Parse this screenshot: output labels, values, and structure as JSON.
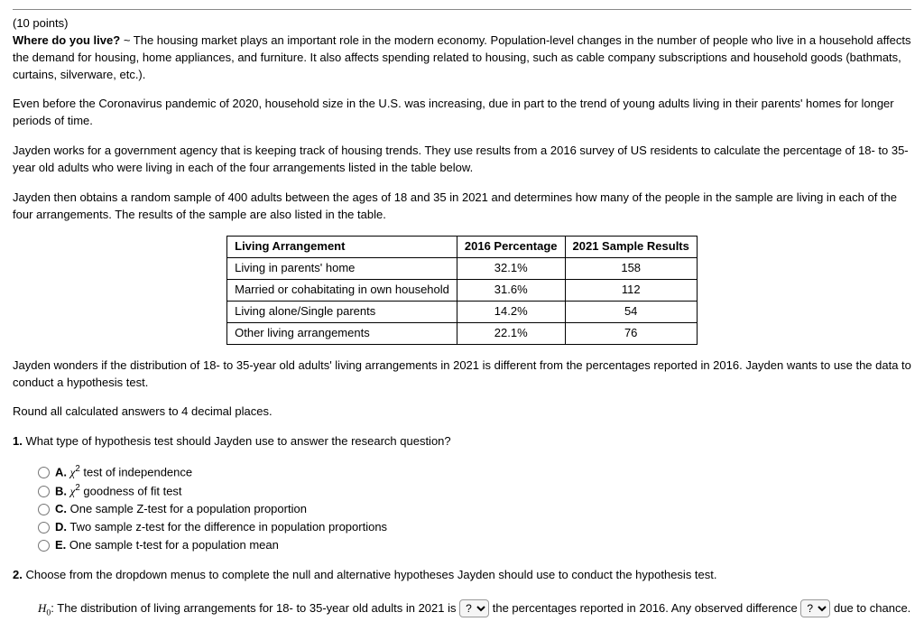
{
  "header": {
    "points": "(10 points)",
    "title": "Where do you live?",
    "tilde": "~",
    "intro": "The housing market plays an important role in the modern economy. Population-level changes in the number of people who live in a household affects the demand for housing, home appliances, and furniture. It also affects spending related to housing, such as cable company subscriptions and household goods (bathmats, curtains, silverware, etc.)."
  },
  "para2": "Even before the Coronavirus pandemic of 2020, household size in the U.S. was increasing, due in part to the trend of young adults living in their parents' homes for longer periods of time.",
  "para3": "Jayden works for a government agency that is keeping track of housing trends. They use results from a 2016 survey of US residents to calculate the percentage of 18- to 35-year old adults who were living in each of the four arrangements listed in the table below.",
  "para4": "Jayden then obtains a random sample of 400 adults between the ages of 18 and 35 in 2021 and determines how many of the people in the sample are living in each of the four arrangements. The results of the sample are also listed in the table.",
  "table": {
    "headers": [
      "Living Arrangement",
      "2016 Percentage",
      "2021 Sample Results"
    ],
    "rows": [
      [
        "Living in parents' home",
        "32.1%",
        "158"
      ],
      [
        "Married or cohabitating in own household",
        "31.6%",
        "112"
      ],
      [
        "Living alone/Single parents",
        "14.2%",
        "54"
      ],
      [
        "Other living arrangements",
        "22.1%",
        "76"
      ]
    ]
  },
  "para5": "Jayden wonders if the distribution of 18- to 35-year old adults' living arrangements in 2021 is different from the percentages reported in 2016. Jayden wants to use the data to conduct a hypothesis test.",
  "para6": "Round all calculated answers to 4 decimal places.",
  "q1": {
    "prompt_num": "1.",
    "prompt_text": "What type of hypothesis test should Jayden use to answer the research question?",
    "A_pre": "A. ",
    "A_post": " test of independence",
    "B_pre": "B. ",
    "B_post": " goodness of fit test",
    "C": "C. One sample Z-test for a population proportion",
    "D": "D. Two sample z-test for the difference in population proportions",
    "E": "E. One sample t-test for a population mean"
  },
  "q2": {
    "prompt_num": "2.",
    "prompt_text": "Choose from the dropdown menus to complete the null and alternative hypotheses Jayden should use to conduct the hypothesis test.",
    "h0_label_pre": "H",
    "h0_label_sub": "0",
    "h0_text1": ": The distribution of living arrangements for 18- to 35-year old adults in 2021 is",
    "h0_text2": "the percentages reported in 2016. Any observed difference",
    "h0_text3": "due to chance.",
    "dd_placeholder": "?"
  }
}
